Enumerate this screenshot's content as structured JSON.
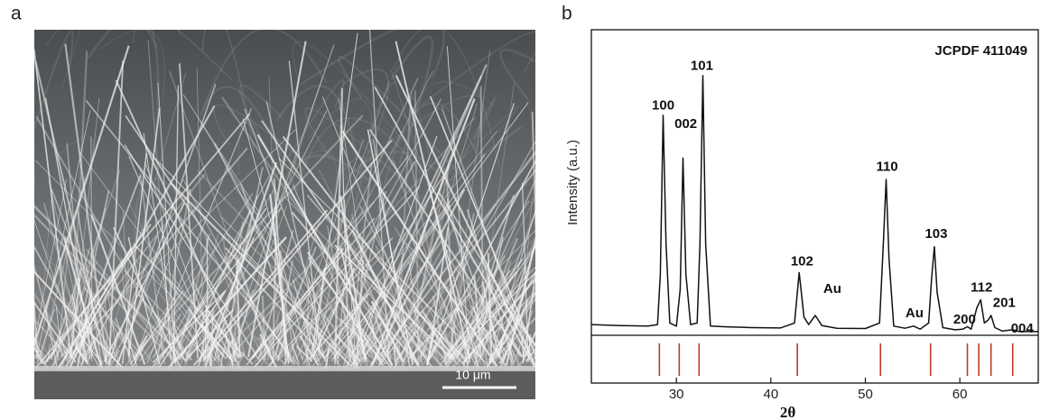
{
  "figure": {
    "panel_labels": [
      "a",
      "b"
    ],
    "scale_bar": "10 μm"
  },
  "chart_data": {
    "type": "line",
    "y_label": "Intensity (a.u.)",
    "x_label": "2θ",
    "legend_text": "JCPDF 411049",
    "x": [
      21,
      24,
      27,
      28.0,
      28.3,
      28.6,
      28.9,
      29.3,
      30.0,
      30.4,
      30.7,
      31.0,
      31.5,
      32.2,
      32.5,
      32.8,
      33.1,
      33.6,
      35,
      38,
      41,
      42.5,
      43.0,
      43.5,
      44.0,
      44.7,
      45.4,
      47,
      50,
      51.5,
      51.9,
      52.2,
      52.5,
      53,
      54.2,
      55.1,
      55.8,
      56.7,
      57.0,
      57.3,
      57.6,
      58.2,
      59.5,
      60.3,
      60.8,
      61.2,
      61.8,
      62.2,
      62.6,
      63.0,
      63.3,
      63.7,
      64.5,
      65.6,
      66.3,
      68.3
    ],
    "values": [
      3.5,
      3.2,
      3.0,
      3.5,
      20,
      72,
      30,
      4,
      3,
      15,
      58,
      20,
      3.5,
      4,
      30,
      85,
      30,
      3,
      2.8,
      2.5,
      2.4,
      4,
      20.5,
      6,
      3.5,
      6.5,
      3.2,
      2.3,
      2.2,
      4,
      30,
      51,
      25,
      3,
      2.3,
      3,
      2,
      4,
      18,
      29,
      14,
      2.5,
      1.8,
      2,
      2.8,
      2,
      9,
      11.6,
      4,
      5,
      6.5,
      2.5,
      1.4,
      1.8,
      1.2,
      1.2
    ],
    "color": "#111111",
    "reference_x": [
      28.2,
      30.3,
      32.4,
      42.8,
      51.6,
      56.9,
      60.8,
      62.0,
      63.3,
      65.6
    ],
    "reference_color": "#c0392b",
    "annotations": [
      {
        "text": "100",
        "x": 28.6,
        "y": 75
      },
      {
        "text": "002",
        "x": 31.0,
        "y": 69
      },
      {
        "text": "101",
        "x": 32.7,
        "y": 88
      },
      {
        "text": "102",
        "x": 43.3,
        "y": 24
      },
      {
        "text": "Au",
        "x": 46.5,
        "y": 15
      },
      {
        "text": "110",
        "x": 52.3,
        "y": 55
      },
      {
        "text": "Au",
        "x": 55.2,
        "y": 7
      },
      {
        "text": "103",
        "x": 57.5,
        "y": 33
      },
      {
        "text": "200",
        "x": 60.5,
        "y": 5
      },
      {
        "text": "112",
        "x": 62.3,
        "y": 15.5
      },
      {
        "text": "201",
        "x": 64.7,
        "y": 10.5
      },
      {
        "text": "004",
        "x": 66.6,
        "y": 2
      }
    ],
    "xlim": [
      21,
      68.3
    ],
    "xticks": [
      30,
      40,
      50,
      60
    ],
    "ylim": [
      0,
      100
    ]
  }
}
